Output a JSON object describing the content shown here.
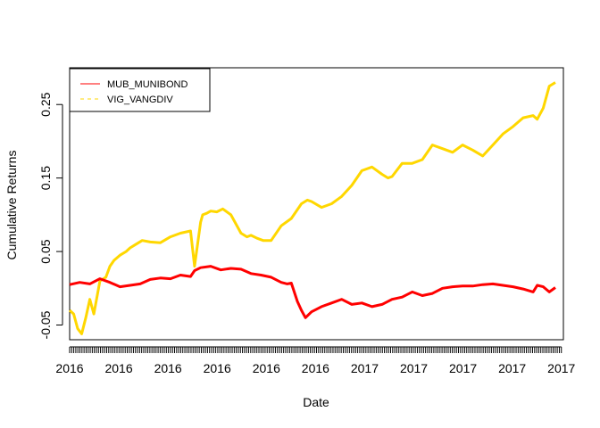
{
  "chart_data": {
    "type": "line",
    "title": "",
    "xlabel": "Date",
    "ylabel": "Cumulative Returns",
    "ylim": [
      -0.07,
      0.3
    ],
    "yticks": [
      -0.05,
      0.05,
      0.15,
      0.25
    ],
    "ytick_labels": [
      "-0.05",
      "0.05",
      "0.15",
      "0.25"
    ],
    "x_range": [
      0,
      245
    ],
    "xtick_labels": [
      {
        "x": 0,
        "label": "2016"
      },
      {
        "x": 24.4,
        "label": "2016"
      },
      {
        "x": 48.8,
        "label": "2016"
      },
      {
        "x": 73.2,
        "label": "2016"
      },
      {
        "x": 97.6,
        "label": "2016"
      },
      {
        "x": 122,
        "label": "2016"
      },
      {
        "x": 146.4,
        "label": "2017"
      },
      {
        "x": 170.8,
        "label": "2017"
      },
      {
        "x": 195.2,
        "label": "2017"
      },
      {
        "x": 219.6,
        "label": "2017"
      },
      {
        "x": 244,
        "label": "2017"
      }
    ],
    "minor_tick_count": 240,
    "grid": false,
    "legend_position": "top-left",
    "series": [
      {
        "name": "MUB_MUNIBOND",
        "color": "#ff0000",
        "line_style": "solid",
        "x": [
          0,
          5,
          10,
          15,
          20,
          25,
          30,
          35,
          40,
          45,
          50,
          55,
          60,
          62,
          65,
          70,
          75,
          80,
          85,
          90,
          95,
          100,
          105,
          108,
          110,
          113,
          115,
          117,
          120,
          125,
          130,
          135,
          140,
          145,
          150,
          155,
          160,
          165,
          170,
          175,
          180,
          185,
          190,
          195,
          200,
          205,
          210,
          215,
          220,
          225,
          230,
          232,
          235,
          238,
          241
        ],
        "y": [
          0.005,
          0.008,
          0.006,
          0.013,
          0.008,
          0.002,
          0.004,
          0.006,
          0.012,
          0.014,
          0.013,
          0.018,
          0.016,
          0.024,
          0.028,
          0.03,
          0.025,
          0.027,
          0.026,
          0.02,
          0.018,
          0.015,
          0.008,
          0.006,
          0.007,
          -0.018,
          -0.03,
          -0.04,
          -0.032,
          -0.025,
          -0.02,
          -0.015,
          -0.022,
          -0.02,
          -0.025,
          -0.022,
          -0.015,
          -0.012,
          -0.005,
          -0.01,
          -0.007,
          0.0,
          0.002,
          0.003,
          0.003,
          0.005,
          0.006,
          0.004,
          0.002,
          -0.001,
          -0.005,
          0.004,
          0.002,
          -0.005,
          0.001
        ]
      },
      {
        "name": "VIG_VANGDIV",
        "color": "#ffd700",
        "line_style": "dashed",
        "x": [
          0,
          2,
          4,
          6,
          8,
          10,
          12,
          15,
          18,
          20,
          22,
          25,
          28,
          30,
          33,
          36,
          40,
          45,
          50,
          55,
          60,
          62,
          65,
          66,
          68,
          70,
          73,
          76,
          80,
          85,
          88,
          90,
          93,
          96,
          100,
          105,
          110,
          115,
          118,
          120,
          125,
          130,
          135,
          140,
          145,
          150,
          155,
          158,
          160,
          165,
          170,
          175,
          180,
          185,
          190,
          195,
          200,
          205,
          210,
          215,
          220,
          225,
          230,
          232,
          235,
          238,
          241
        ],
        "y": [
          -0.03,
          -0.035,
          -0.055,
          -0.062,
          -0.04,
          -0.015,
          -0.035,
          0.01,
          0.015,
          0.03,
          0.038,
          0.045,
          0.05,
          0.055,
          0.06,
          0.065,
          0.063,
          0.062,
          0.07,
          0.075,
          0.078,
          0.03,
          0.09,
          0.1,
          0.102,
          0.105,
          0.104,
          0.108,
          0.1,
          0.075,
          0.07,
          0.072,
          0.068,
          0.065,
          0.065,
          0.085,
          0.095,
          0.115,
          0.12,
          0.118,
          0.11,
          0.115,
          0.125,
          0.14,
          0.16,
          0.165,
          0.155,
          0.15,
          0.152,
          0.17,
          0.17,
          0.175,
          0.195,
          0.19,
          0.185,
          0.195,
          0.188,
          0.18,
          0.195,
          0.21,
          0.22,
          0.232,
          0.235,
          0.23,
          0.245,
          0.275,
          0.28
        ]
      }
    ]
  }
}
